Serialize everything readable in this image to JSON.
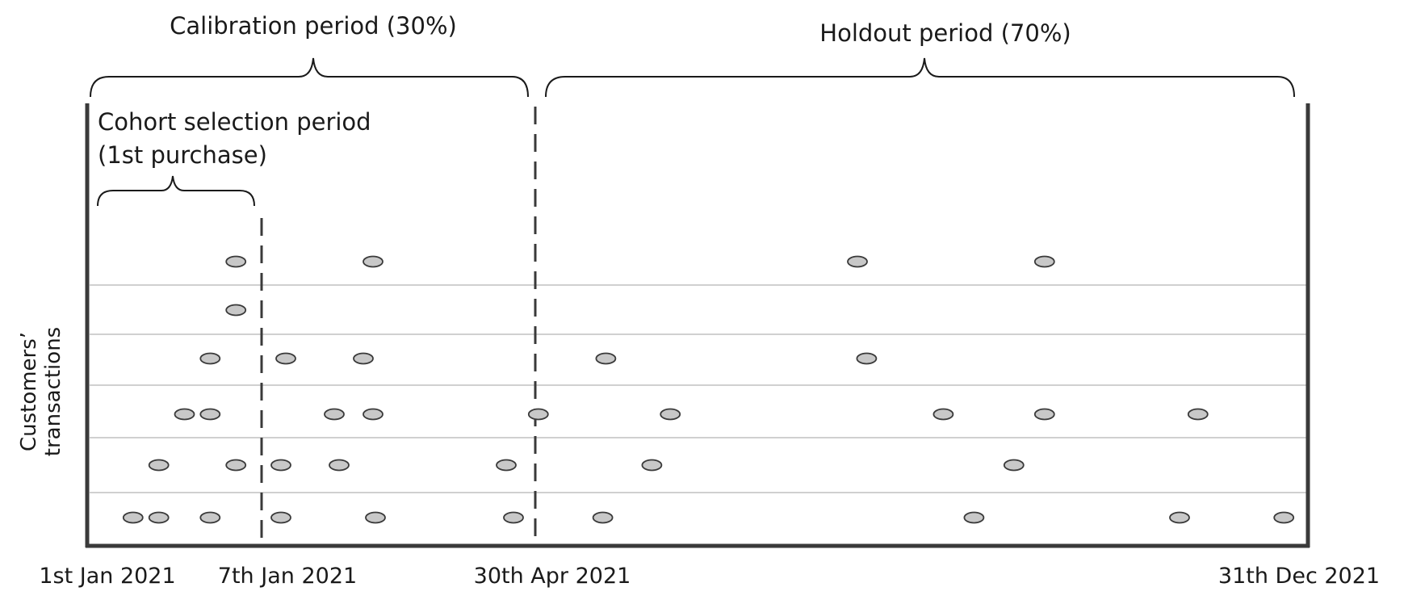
{
  "brackets": {
    "calibration": "Calibration period (30%)",
    "holdout": "Holdout period (70%)",
    "cohort_line1": "Cohort selection period",
    "cohort_line2": "(1st purchase)"
  },
  "y_axis": {
    "line1": "Customers’",
    "line2": "transactions"
  },
  "x_ticks": [
    "1st Jan 2021",
    "7th Jan 2021",
    "30th Apr 2021",
    "31th Dec 2021"
  ],
  "colors": {
    "frame": "#3a3a3a",
    "row_line": "#b5b5b5",
    "dot_fill": "#c8c8c8",
    "dot_stroke": "#3a3a3a"
  },
  "customers": [
    {
      "transactions": [
        "2021-01-06",
        "2021-02-22",
        "2021-08-13",
        "2021-10-13"
      ]
    },
    {
      "transactions": [
        "2021-01-06"
      ]
    },
    {
      "transactions": [
        "2021-01-05",
        "2021-01-17",
        "2021-02-18",
        "2021-05-23",
        "2021-08-16"
      ]
    },
    {
      "transactions": [
        "2021-01-04",
        "2021-01-05",
        "2021-02-06",
        "2021-02-22",
        "2021-05-01",
        "2021-06-13",
        "2021-09-10",
        "2021-10-13",
        "2021-12-02"
      ]
    },
    {
      "transactions": [
        "2021-01-03",
        "2021-01-06",
        "2021-01-15",
        "2021-02-08",
        "2021-04-18",
        "2021-06-07",
        "2021-10-03"
      ]
    },
    {
      "transactions": [
        "2021-01-02",
        "2021-01-03",
        "2021-01-05",
        "2021-01-15",
        "2021-02-23",
        "2021-04-21",
        "2021-05-22",
        "2021-09-20",
        "2021-11-26",
        "2021-12-30"
      ]
    }
  ]
}
